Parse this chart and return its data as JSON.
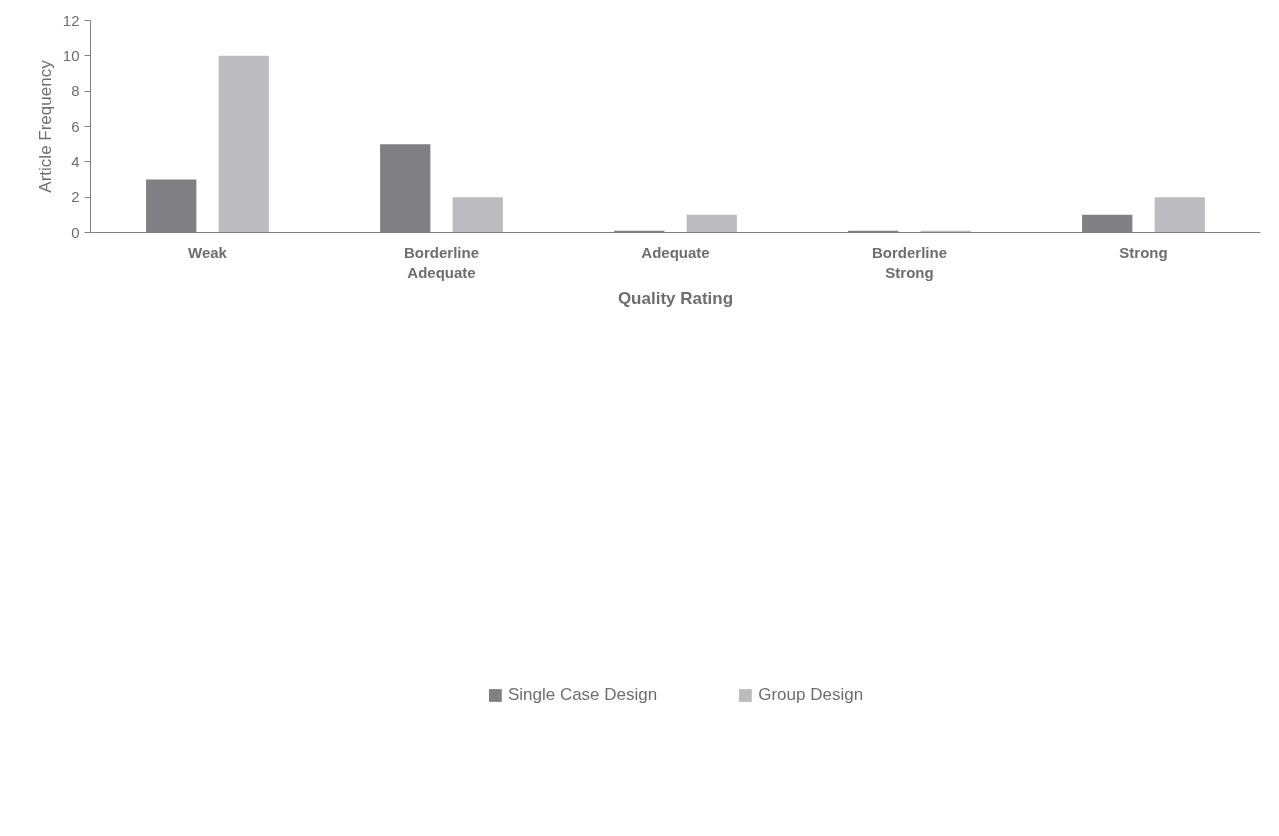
{
  "chart_data": {
    "type": "bar",
    "xlabel": "Quality Rating",
    "ylabel": "Article Frequency",
    "categories": [
      "Weak",
      "Borderline Adequate",
      "Adequate",
      "Borderline Strong",
      "Strong"
    ],
    "series": [
      {
        "name": "Single Case Design",
        "color": "#808084",
        "values": [
          3,
          5,
          0.1,
          0.1,
          1
        ]
      },
      {
        "name": "Group Design",
        "color": "#bcbcc0",
        "values": [
          10,
          2,
          1,
          0.1,
          2
        ]
      }
    ],
    "ylim": [
      0,
      12
    ],
    "yticks": [
      0,
      2,
      4,
      6,
      8,
      10,
      12
    ],
    "grid": false,
    "legend": "bottom"
  }
}
